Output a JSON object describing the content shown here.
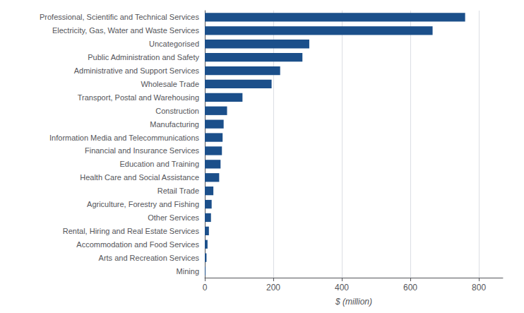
{
  "chart_data": {
    "type": "bar",
    "orientation": "horizontal",
    "categories": [
      "Mining",
      "Arts and Recreation Services",
      "Accommodation and Food Services",
      "Rental, Hiring and Real Estate Services",
      "Other Services",
      "Agriculture, Forestry and Fishing",
      "Retail Trade",
      "Health Care and Social Assistance",
      "Education and Training",
      "Financial and Insurance Services",
      "Information Media and Telecommunications",
      "Manufacturing",
      "Construction",
      "Transport, Postal and Warehousing",
      "Wholesale Trade",
      "Administrative and Support Services",
      "Public Administration and Safety",
      "Uncategorised",
      "Electricity, Gas, Water and Waste Services",
      "Professional, Scientific and Technical Services"
    ],
    "values": [
      2,
      5,
      8,
      12,
      18,
      20,
      25,
      42,
      46,
      50,
      52,
      55,
      65,
      110,
      195,
      220,
      285,
      305,
      665,
      760
    ],
    "color": "#1B4F8A",
    "xlabel": "$ (million)",
    "xlim": [
      0,
      870
    ],
    "xticks": [
      0,
      200,
      400,
      600,
      800
    ],
    "grid": true
  }
}
